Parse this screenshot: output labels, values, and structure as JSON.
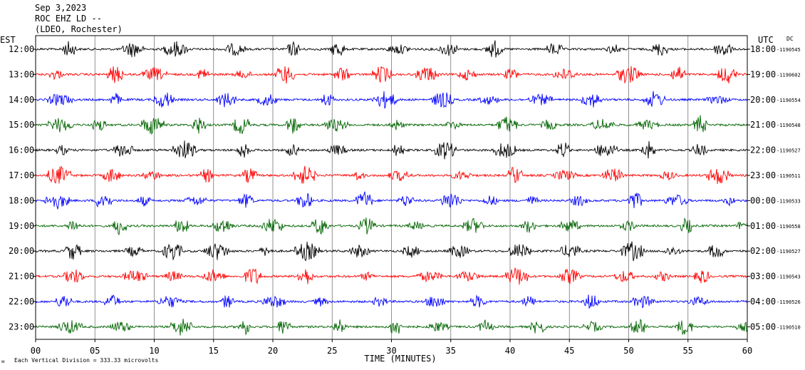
{
  "header": {
    "date": "Sep 3,2023",
    "station": "ROC EHZ LD --",
    "network": "(LDEO, Rochester)"
  },
  "left_zone": "EST",
  "right_zone": "UTC",
  "dc_label": "DC",
  "footer": {
    "scale_text": "Each Vertical Division =  333.33 microvolts"
  },
  "chart_data": {
    "type": "line",
    "xlabel": "TIME (MINUTES)",
    "xlim": [
      0,
      60
    ],
    "x_ticks": [
      "00",
      "05",
      "10",
      "15",
      "20",
      "25",
      "30",
      "35",
      "40",
      "45",
      "50",
      "55",
      "60"
    ],
    "trace_colors": [
      "#000000",
      "#ff0000",
      "#0000ff",
      "#006400"
    ],
    "rows": [
      {
        "est": "12:00",
        "utc": "18:00",
        "dc": "-1190545"
      },
      {
        "est": "13:00",
        "utc": "19:00",
        "dc": "-1190602"
      },
      {
        "est": "14:00",
        "utc": "20:00",
        "dc": "-1190554"
      },
      {
        "est": "15:00",
        "utc": "21:00",
        "dc": "-1190548"
      },
      {
        "est": "16:00",
        "utc": "22:00",
        "dc": "-1190527"
      },
      {
        "est": "17:00",
        "utc": "23:00",
        "dc": "-1190511"
      },
      {
        "est": "18:00",
        "utc": "00:00",
        "dc": "-1190533"
      },
      {
        "est": "19:00",
        "utc": "01:00",
        "dc": "-1190558"
      },
      {
        "est": "20:00",
        "utc": "02:00",
        "dc": "-1190527"
      },
      {
        "est": "21:00",
        "utc": "03:00",
        "dc": "-1190543"
      },
      {
        "est": "22:00",
        "utc": "04:00",
        "dc": "-1190526"
      },
      {
        "est": "23:00",
        "utc": "05:00",
        "dc": "-1190510"
      }
    ]
  }
}
